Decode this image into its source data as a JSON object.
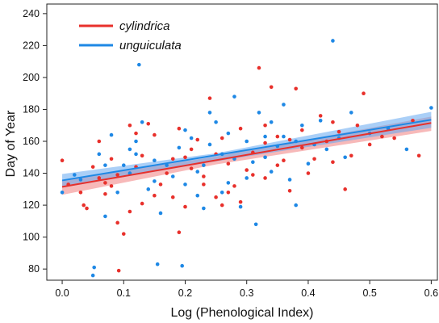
{
  "chart_data": {
    "type": "scatter",
    "title": "",
    "xlabel": "Log (Phenological Index)",
    "ylabel": "Day of Year",
    "xlim": [
      -0.025,
      0.61
    ],
    "ylim": [
      73,
      246
    ],
    "xticks": [
      0.0,
      0.1,
      0.2,
      0.3,
      0.4,
      0.5,
      0.6
    ],
    "yticks": [
      80,
      100,
      120,
      140,
      160,
      180,
      200,
      220,
      240
    ],
    "grid": false,
    "legend_position": "top-left",
    "series": [
      {
        "name": "cylindrica",
        "color": "#e8302b",
        "band_color": "#f08080",
        "fit": {
          "x": [
            0.0,
            0.6
          ],
          "y": [
            131.5,
            171.5
          ]
        },
        "ci_upper": {
          "x": [
            0.0,
            0.25,
            0.6
          ],
          "y": [
            135.5,
            150.5,
            175.5
          ]
        },
        "ci_lower": {
          "x": [
            0.0,
            0.25,
            0.6
          ],
          "y": [
            126.5,
            145.5,
            166.5
          ]
        },
        "points": [
          [
            0.0,
            148
          ],
          [
            0.01,
            133
          ],
          [
            0.03,
            128
          ],
          [
            0.04,
            118
          ],
          [
            0.05,
            144
          ],
          [
            0.06,
            160
          ],
          [
            0.07,
            127
          ],
          [
            0.08,
            132
          ],
          [
            0.09,
            109
          ],
          [
            0.1,
            102
          ],
          [
            0.11,
            170
          ],
          [
            0.12,
            165
          ],
          [
            0.13,
            151
          ],
          [
            0.14,
            171
          ],
          [
            0.15,
            126
          ],
          [
            0.17,
            140
          ],
          [
            0.18,
            149
          ],
          [
            0.19,
            103
          ],
          [
            0.2,
            119
          ],
          [
            0.21,
            155
          ],
          [
            0.22,
            161
          ],
          [
            0.23,
            138
          ],
          [
            0.24,
            187
          ],
          [
            0.25,
            125
          ],
          [
            0.26,
            162
          ],
          [
            0.27,
            146
          ],
          [
            0.28,
            132
          ],
          [
            0.29,
            168
          ],
          [
            0.3,
            142
          ],
          [
            0.31,
            153
          ],
          [
            0.32,
            206
          ],
          [
            0.33,
            137
          ],
          [
            0.34,
            194
          ],
          [
            0.35,
            163
          ],
          [
            0.36,
            148
          ],
          [
            0.37,
            129
          ],
          [
            0.38,
            193
          ],
          [
            0.39,
            156
          ],
          [
            0.4,
            140
          ],
          [
            0.42,
            176
          ],
          [
            0.43,
            160
          ],
          [
            0.44,
            147
          ],
          [
            0.45,
            166
          ],
          [
            0.46,
            130
          ],
          [
            0.47,
            151
          ],
          [
            0.48,
            170
          ],
          [
            0.49,
            190
          ],
          [
            0.5,
            158
          ],
          [
            0.52,
            163
          ],
          [
            0.54,
            162
          ],
          [
            0.57,
            173
          ],
          [
            0.58,
            151
          ],
          [
            0.092,
            79
          ],
          [
            0.11,
            116
          ],
          [
            0.07,
            134
          ],
          [
            0.035,
            120
          ],
          [
            0.12,
            144
          ],
          [
            0.16,
            133
          ],
          [
            0.2,
            150
          ],
          [
            0.27,
            128
          ],
          [
            0.33,
            159
          ],
          [
            0.35,
            145
          ],
          [
            0.29,
            122
          ],
          [
            0.23,
            133
          ],
          [
            0.15,
            164
          ],
          [
            0.08,
            149
          ],
          [
            0.06,
            137
          ],
          [
            0.18,
            125
          ],
          [
            0.25,
            152
          ],
          [
            0.31,
            139
          ],
          [
            0.37,
            161
          ],
          [
            0.41,
            149
          ],
          [
            0.44,
            172
          ],
          [
            0.13,
            121
          ],
          [
            0.21,
            143
          ],
          [
            0.19,
            168
          ],
          [
            0.26,
            120
          ],
          [
            0.33,
            170
          ],
          [
            0.39,
            167
          ],
          [
            0.09,
            139
          ]
        ]
      },
      {
        "name": "unguiculata",
        "color": "#1e88e5",
        "band_color": "#64a8f0",
        "fit": {
          "x": [
            0.0,
            0.6
          ],
          "y": [
            135.5,
            173.5
          ]
        },
        "ci_upper": {
          "x": [
            0.0,
            0.25,
            0.6
          ],
          "y": [
            139.5,
            152.5,
            178.5
          ]
        },
        "ci_lower": {
          "x": [
            0.0,
            0.25,
            0.6
          ],
          "y": [
            131.0,
            147.5,
            168.5
          ]
        },
        "points": [
          [
            0.0,
            128
          ],
          [
            0.02,
            139
          ],
          [
            0.05,
            76
          ],
          [
            0.052,
            81
          ],
          [
            0.06,
            152
          ],
          [
            0.07,
            113
          ],
          [
            0.08,
            164
          ],
          [
            0.1,
            145
          ],
          [
            0.11,
            155
          ],
          [
            0.12,
            160
          ],
          [
            0.125,
            208
          ],
          [
            0.13,
            172
          ],
          [
            0.14,
            130
          ],
          [
            0.15,
            148
          ],
          [
            0.155,
            83
          ],
          [
            0.16,
            115
          ],
          [
            0.18,
            138
          ],
          [
            0.195,
            82
          ],
          [
            0.2,
            167
          ],
          [
            0.21,
            162
          ],
          [
            0.22,
            126
          ],
          [
            0.23,
            145
          ],
          [
            0.24,
            178
          ],
          [
            0.25,
            172
          ],
          [
            0.26,
            152
          ],
          [
            0.27,
            134
          ],
          [
            0.28,
            188
          ],
          [
            0.29,
            119
          ],
          [
            0.3,
            160
          ],
          [
            0.31,
            147
          ],
          [
            0.315,
            108
          ],
          [
            0.32,
            178
          ],
          [
            0.33,
            163
          ],
          [
            0.34,
            141
          ],
          [
            0.35,
            157
          ],
          [
            0.36,
            183
          ],
          [
            0.37,
            136
          ],
          [
            0.38,
            120
          ],
          [
            0.39,
            170
          ],
          [
            0.41,
            158
          ],
          [
            0.42,
            173
          ],
          [
            0.44,
            223
          ],
          [
            0.45,
            162
          ],
          [
            0.47,
            178
          ],
          [
            0.5,
            165
          ],
          [
            0.53,
            168
          ],
          [
            0.56,
            155
          ],
          [
            0.6,
            181
          ],
          [
            0.03,
            136
          ],
          [
            0.09,
            128
          ],
          [
            0.12,
            152
          ],
          [
            0.17,
            145
          ],
          [
            0.19,
            156
          ],
          [
            0.22,
            141
          ],
          [
            0.24,
            158
          ],
          [
            0.27,
            165
          ],
          [
            0.3,
            137
          ],
          [
            0.33,
            150
          ],
          [
            0.36,
            163
          ],
          [
            0.4,
            146
          ],
          [
            0.43,
            155
          ],
          [
            0.15,
            135
          ],
          [
            0.07,
            145
          ],
          [
            0.26,
            128
          ],
          [
            0.34,
            172
          ],
          [
            0.2,
            133
          ],
          [
            0.11,
            140
          ],
          [
            0.28,
            149
          ],
          [
            0.38,
            160
          ],
          [
            0.46,
            150
          ],
          [
            0.23,
            118
          ]
        ]
      }
    ]
  }
}
